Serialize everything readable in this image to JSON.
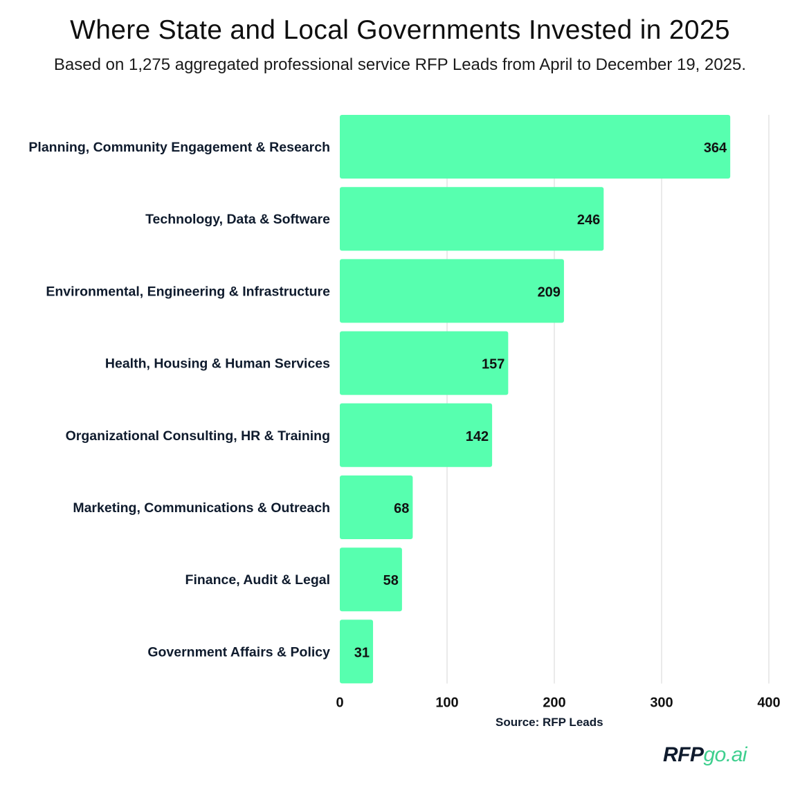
{
  "header": {
    "title": "Where State and Local Governments Invested in 2025",
    "subtitle": "Based on 1,275 aggregated professional service RFP Leads from April to December 19, 2025."
  },
  "footer": {
    "source": "Source: RFP Leads",
    "logo_part1": "RFP",
    "logo_part2": "go.ai"
  },
  "colors": {
    "bar": "#57ffaf",
    "grid": "#d6d6d6",
    "logo_accent": "#3ecf8e"
  },
  "chart_data": {
    "type": "bar",
    "orientation": "horizontal",
    "title": "Where State and Local Governments Invested in 2025",
    "subtitle": "Based on 1,275 aggregated professional service RFP Leads from April to December 19, 2025.",
    "categories": [
      "Planning, Community Engagement & Research",
      "Technology, Data & Software",
      "Environmental, Engineering & Infrastructure",
      "Health, Housing & Human Services",
      "Organizational Consulting, HR & Training",
      "Marketing, Communications & Outreach",
      "Finance, Audit & Legal",
      "Government Affairs & Policy"
    ],
    "values": [
      364,
      246,
      209,
      157,
      142,
      68,
      58,
      31
    ],
    "xlim": [
      0,
      400
    ],
    "xticks": [
      0,
      100,
      200,
      300,
      400
    ],
    "xlabel": "",
    "ylabel": "",
    "grid": "vertical",
    "data_labels": true
  }
}
